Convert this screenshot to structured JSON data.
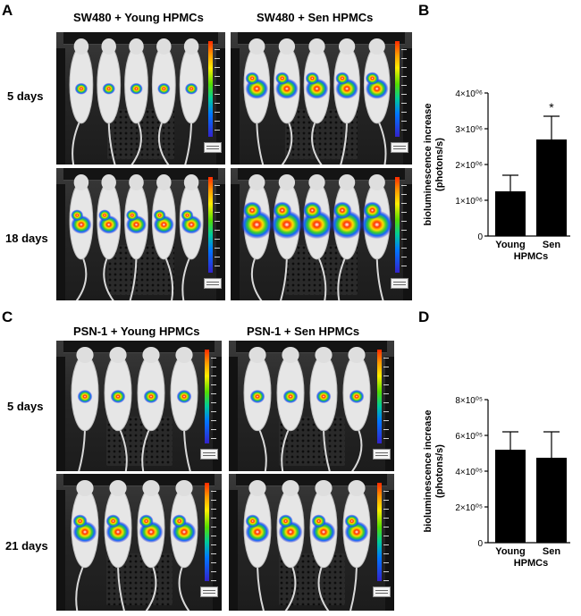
{
  "panels": {
    "A": {
      "letter": "A",
      "col_titles": [
        "SW480 + Young HPMCs",
        "SW480 + Sen HPMCs"
      ],
      "row_labels": [
        "5 days",
        "18 days"
      ]
    },
    "B": {
      "letter": "B"
    },
    "C": {
      "letter": "C",
      "col_titles": [
        "PSN-1 + Young HPMCs",
        "PSN-1 + Sen HPMCs"
      ],
      "row_labels": [
        "5 days",
        "21 days"
      ]
    },
    "D": {
      "letter": "D"
    }
  },
  "colors": {
    "bar_fill": "#000000",
    "axis": "#000000"
  },
  "chart_data": [
    {
      "panel": "B",
      "type": "bar",
      "categories": [
        "Young",
        "Sen"
      ],
      "values": [
        1250000,
        2700000
      ],
      "errors": [
        450000,
        650000
      ],
      "annotations": [
        "",
        "*"
      ],
      "xlabel": "HPMCs",
      "ylabel_lines": [
        "bioluminescence increase",
        "(photons/s)"
      ],
      "ylim": [
        0,
        4000000
      ],
      "yticks": [
        0,
        1000000,
        2000000,
        3000000,
        4000000
      ],
      "ytick_labels": [
        "0",
        "1×10⁰⁶",
        "2×10⁰⁶",
        "3×10⁰⁶",
        "4×10⁰⁶"
      ]
    },
    {
      "panel": "D",
      "type": "bar",
      "categories": [
        "Young",
        "Sen"
      ],
      "values": [
        520000,
        475000
      ],
      "errors": [
        100000,
        145000
      ],
      "annotations": [
        "",
        ""
      ],
      "xlabel": "HPMCs",
      "ylabel_lines": [
        "bioluminescence increase",
        "(photons/s)"
      ],
      "ylim": [
        0,
        800000
      ],
      "yticks": [
        0,
        200000,
        400000,
        600000,
        800000
      ],
      "ytick_labels": [
        "0",
        "2×10⁰⁵",
        "4×10⁰⁵",
        "6×10⁰⁵",
        "8×10⁰⁵"
      ]
    }
  ]
}
